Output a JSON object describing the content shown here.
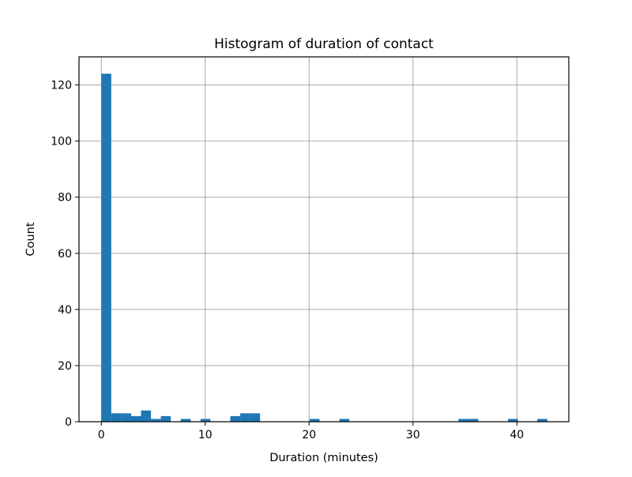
{
  "chart_data": {
    "type": "bar",
    "title": "Histogram of duration of contact",
    "xlabel": "Duration (minutes)",
    "ylabel": "Count",
    "xlim": [
      -2.15,
      45.0
    ],
    "ylim": [
      0,
      130
    ],
    "xticks": [
      0,
      10,
      20,
      30,
      40
    ],
    "yticks": [
      0,
      20,
      40,
      60,
      80,
      100,
      120
    ],
    "grid": true,
    "bar_color": "#1f77b4",
    "bin_width": 0.955,
    "bins": [
      {
        "x0": 0.0,
        "count": 124
      },
      {
        "x0": 0.955,
        "count": 3
      },
      {
        "x0": 1.91,
        "count": 3
      },
      {
        "x0": 2.865,
        "count": 2
      },
      {
        "x0": 3.82,
        "count": 4
      },
      {
        "x0": 4.775,
        "count": 1
      },
      {
        "x0": 5.73,
        "count": 2
      },
      {
        "x0": 7.64,
        "count": 1
      },
      {
        "x0": 9.55,
        "count": 1
      },
      {
        "x0": 12.415,
        "count": 2
      },
      {
        "x0": 13.37,
        "count": 3
      },
      {
        "x0": 14.325,
        "count": 3
      },
      {
        "x0": 20.055,
        "count": 1
      },
      {
        "x0": 22.92,
        "count": 1
      },
      {
        "x0": 34.38,
        "count": 1
      },
      {
        "x0": 35.335,
        "count": 1
      },
      {
        "x0": 39.155,
        "count": 1
      },
      {
        "x0": 41.975,
        "count": 1
      }
    ]
  }
}
